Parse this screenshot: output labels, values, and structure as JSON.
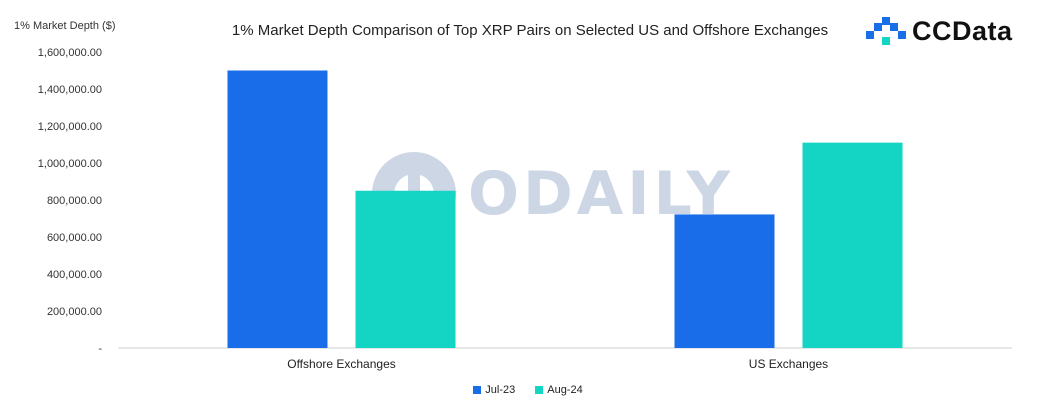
{
  "header": {
    "ylabel": "1% Market Depth ($)",
    "title": "1% Market Depth Comparison of Top XRP Pairs on Selected US and Offshore Exchanges"
  },
  "logo": {
    "text": "CCData"
  },
  "watermark": {
    "text": "ODAILY"
  },
  "colors": {
    "jul23": "#1a6de8",
    "aug24": "#14d4c4"
  },
  "chart_data": {
    "type": "bar",
    "title": "1% Market Depth Comparison of Top XRP Pairs on Selected US and Offshore Exchanges",
    "ylabel": "1% Market Depth ($)",
    "xlabel": "",
    "categories": [
      "Offshore Exchanges",
      "US Exchanges"
    ],
    "series": [
      {
        "name": "Jul-23",
        "values": [
          1500000,
          722000
        ]
      },
      {
        "name": "Aug-24",
        "values": [
          850000,
          1110000
        ]
      }
    ],
    "ylim": [
      0,
      1600000
    ],
    "yticks": [
      "-",
      "200,000.00",
      "400,000.00",
      "600,000.00",
      "800,000.00",
      "1,000,000.00",
      "1,200,000.00",
      "1,400,000.00",
      "1,600,000.00"
    ],
    "legend_position": "bottom",
    "grid": false
  }
}
